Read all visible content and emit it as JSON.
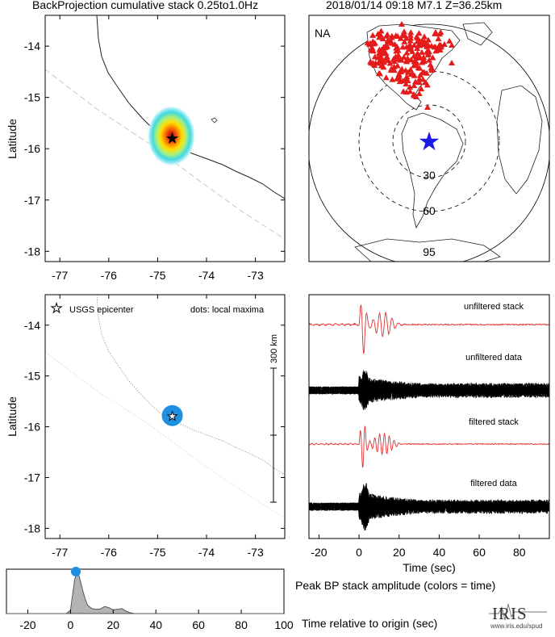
{
  "header": {
    "title_left": "BackProjection cumulative stack 0.25to1.0Hz",
    "title_right": "2018/01/14 09:18   M7.1   Z=36.25km"
  },
  "chart_data": [
    {
      "type": "heatmap",
      "panel": "backprojection-map",
      "ylabel": "Latitude",
      "xlim": [
        -77.3,
        -72.4
      ],
      "ylim": [
        -18.2,
        -13.4
      ],
      "xticks": [
        -77,
        -76,
        -75,
        -74,
        -73
      ],
      "yticks": [
        -14,
        -15,
        -16,
        -17,
        -18
      ],
      "epicenter": {
        "lon": -74.7,
        "lat": -15.78
      },
      "stack_peak": {
        "lon": -74.72,
        "lat": -15.75,
        "spread_deg_lon": 0.8,
        "spread_deg_lat": 0.7
      }
    },
    {
      "type": "scatter",
      "panel": "station-map",
      "network_label": "NA",
      "epicenter_marker": "blue-star",
      "range_rings_deg": [
        "30",
        "60",
        "95"
      ],
      "stations_marker": "red-triangle"
    },
    {
      "type": "scatter",
      "panel": "local-maxima-map",
      "ylabel": "Latitude",
      "xlim": [
        -77.3,
        -72.4
      ],
      "ylim": [
        -18.2,
        -13.4
      ],
      "xticks": [
        -77,
        -76,
        -75,
        -74,
        -73
      ],
      "yticks": [
        -14,
        -15,
        -16,
        -17,
        -18
      ],
      "legend_epicenter": "USGS epicenter",
      "legend_dots": "dots: local maxima",
      "scale_bar_label": "300 km",
      "maxima": [
        {
          "lon": -74.7,
          "lat": -15.78,
          "color": "#1e90e0"
        }
      ]
    },
    {
      "type": "line",
      "panel": "seismograms",
      "xlabel": "Time (sec)",
      "xlim": [
        -25,
        95
      ],
      "xticks": [
        -20,
        0,
        20,
        40,
        60,
        80
      ],
      "traces": [
        "unfiltered stack",
        "unfiltered data",
        "filtered stack",
        "filtered data"
      ],
      "stack_color": "#e03030",
      "data_color": "#000000"
    },
    {
      "type": "area",
      "panel": "peak-amplitude",
      "title": "Peak BP stack amplitude (colors = time)",
      "xlabel": "Time relative to origin (sec)",
      "xlim": [
        -30,
        100
      ],
      "xticks": [
        -20,
        0,
        20,
        40,
        60,
        80,
        100
      ],
      "x": [
        -30,
        -2,
        0,
        1,
        2,
        3,
        4,
        5,
        6,
        7,
        8,
        10,
        12,
        14,
        16,
        18,
        20,
        22,
        24,
        26,
        28,
        30,
        100
      ],
      "values": [
        0,
        0,
        0.08,
        0.45,
        0.82,
        0.97,
        0.9,
        0.7,
        0.5,
        0.33,
        0.2,
        0.12,
        0.1,
        0.11,
        0.17,
        0.14,
        0.09,
        0.1,
        0.12,
        0.06,
        0.02,
        0,
        0
      ],
      "peak": {
        "x": 2.5,
        "y": 1.0,
        "color": "#1e90e0"
      }
    }
  ],
  "logo": {
    "name": "IRIS",
    "url": "www.iris.edu/spud"
  }
}
